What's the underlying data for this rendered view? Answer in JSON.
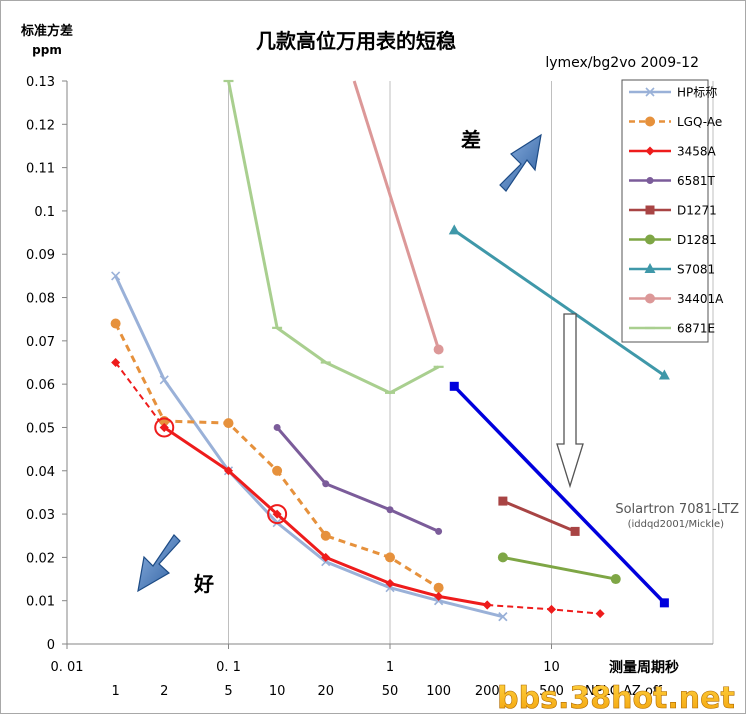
{
  "chart_data": {
    "type": "line",
    "title": "几款高位万用表的短稳",
    "credit": "lymex/bg2vo 2009-12",
    "ylabel": "标准方差",
    "yunit": "ppm",
    "xlabel": "测量周期秒",
    "xscale": "log",
    "xlim": [
      0.01,
      100
    ],
    "ylim": [
      0,
      0.13
    ],
    "grid": "vertical lines at decades",
    "legend_position": "top-right",
    "x_ticks": [
      "0.01",
      "0.1",
      "1",
      "10"
    ],
    "y_ticks": [
      "0",
      "0.01",
      "0.02",
      "0.03",
      "0.04",
      "0.05",
      "0.06",
      "0.07",
      "0.08",
      "0.09",
      "0.1",
      "0.11",
      "0.12",
      "0.13"
    ],
    "nplc_row": {
      "labels": [
        "1",
        "2",
        "5",
        "10",
        "20",
        "50",
        "100",
        "200",
        "500"
      ],
      "x": [
        0.02,
        0.04,
        0.1,
        0.2,
        0.4,
        1,
        2,
        4,
        10
      ],
      "suffix": "NPLC   AZ off"
    },
    "series": [
      {
        "name": "HP标称",
        "color": "#9ab1d8",
        "marker": "x",
        "dash": false,
        "x": [
          0.02,
          0.04,
          0.1,
          0.2,
          0.4,
          1,
          2,
          5
        ],
        "y": [
          0.085,
          0.061,
          0.04,
          0.028,
          0.019,
          0.013,
          0.01,
          0.0063
        ]
      },
      {
        "name": "LGQ-Ae",
        "color": "#e6913c",
        "marker": "circle",
        "dash": true,
        "x": [
          0.02,
          0.04,
          0.1,
          0.2,
          0.4,
          1,
          2
        ],
        "y": [
          0.074,
          0.0515,
          0.051,
          0.04,
          0.025,
          0.02,
          0.013
        ]
      },
      {
        "name": "3458A",
        "color": "#ee1c1c",
        "marker": "diamond",
        "dash": false,
        "x": [
          0.04,
          0.1,
          0.2,
          0.4,
          1,
          2,
          4
        ],
        "y": [
          0.05,
          0.04,
          0.03,
          0.02,
          0.014,
          0.011,
          0.009
        ]
      },
      {
        "name": "6581T",
        "color": "#7b5c9a",
        "marker": "circle-small",
        "dash": false,
        "x": [
          0.2,
          0.4,
          1,
          2
        ],
        "y": [
          0.05,
          0.037,
          0.031,
          0.026
        ]
      },
      {
        "name": "D1271",
        "color": "#a84444",
        "marker": "square",
        "dash": false,
        "x": [
          5,
          14
        ],
        "y": [
          0.033,
          0.026
        ]
      },
      {
        "name": "D1281",
        "color": "#7ea645",
        "marker": "circle",
        "dash": false,
        "x": [
          5,
          25
        ],
        "y": [
          0.02,
          0.015
        ]
      },
      {
        "name": "S7081",
        "color": "#3f98a9",
        "marker": "triangle",
        "dash": false,
        "x": [
          2.5,
          50
        ],
        "y": [
          0.0955,
          0.062
        ]
      },
      {
        "name": "34401A",
        "color": "#dc9898",
        "marker": "circle",
        "dash": false,
        "x": [
          0.6,
          2
        ],
        "y": [
          0.13,
          0.068
        ]
      },
      {
        "name": "6871E",
        "color": "#a9cf8f",
        "marker": "dash",
        "dash": false,
        "x": [
          0.1,
          0.2,
          0.4,
          1,
          2
        ],
        "y": [
          0.13,
          0.073,
          0.065,
          0.058,
          0.064
        ]
      }
    ],
    "extensions": [
      {
        "series": "3458A",
        "color": "#ee1c1c",
        "marker": "diamond",
        "x": [
          0.02,
          0.04
        ],
        "y": [
          0.065,
          0.05
        ]
      },
      {
        "series": "3458A",
        "color": "#ee1c1c",
        "marker": "diamond",
        "x": [
          4,
          10,
          20
        ],
        "y": [
          0.009,
          0.008,
          0.007
        ]
      },
      {
        "series": "HP标称",
        "color": "#9ab1d8",
        "marker": "x",
        "x": [
          2,
          5
        ],
        "y": [
          0.01,
          0.0063
        ]
      }
    ],
    "highlight_circles": [
      {
        "x": 0.04,
        "y": 0.05
      },
      {
        "x": 0.2,
        "y": 0.03
      }
    ],
    "extra_line": {
      "name": "Solartron 7081-LTZ",
      "note": "(iddqd2001/Mickle)",
      "color": "#0000dd",
      "x": [
        2.5,
        50
      ],
      "y": [
        0.0595,
        0.0095
      ]
    },
    "annotations": {
      "worse": "差",
      "better": "好"
    },
    "watermark": "bbs.38hot.net"
  }
}
